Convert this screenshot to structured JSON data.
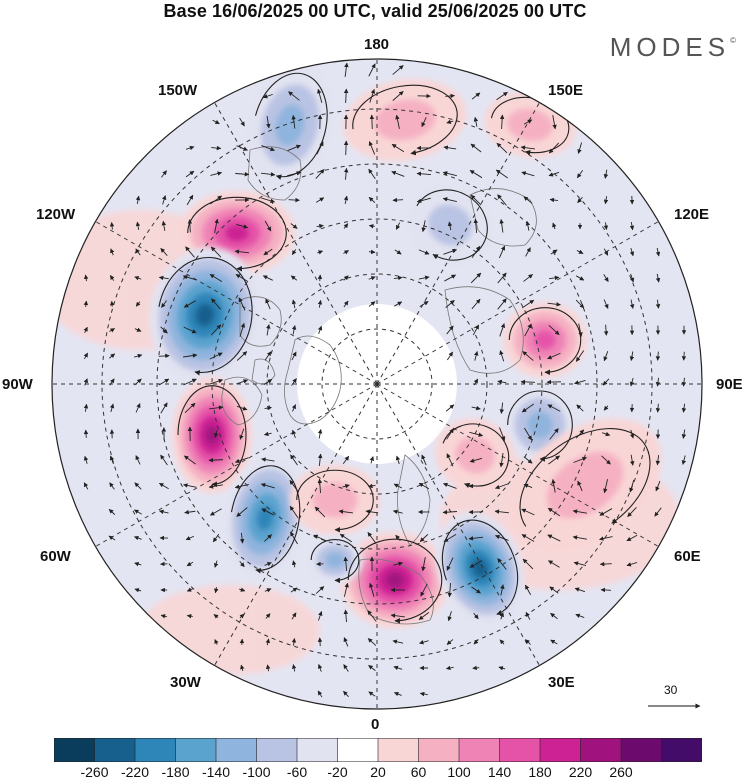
{
  "title": "Base 16/06/2025 00 UTC, valid 25/06/2025 00 UTC",
  "brand": "MODES",
  "brand_mark": "©",
  "longitude_labels": {
    "lon_180": "180",
    "lon_150w": "150W",
    "lon_150e": "150E",
    "lon_120w": "120W",
    "lon_120e": "120E",
    "lon_90w": "90W",
    "lon_90e": "90E",
    "lon_60w": "60W",
    "lon_60e": "60E",
    "lon_30w": "30W",
    "lon_30e": "30E",
    "lon_0": "0"
  },
  "wind_reference": {
    "label": "30",
    "icon": "arrow-right-icon"
  },
  "colorbar": {
    "colors": [
      "#0a3d5c",
      "#175f8d",
      "#2d85b8",
      "#5ba3cf",
      "#8fb4dd",
      "#b9c3e3",
      "#e2e3f1",
      "#ffffff",
      "#f9d6d6",
      "#f5b1c2",
      "#ef83b6",
      "#e553a8",
      "#cc2293",
      "#a0137f",
      "#6d0a6e",
      "#430c68"
    ],
    "labels": [
      "-260",
      "-220",
      "-180",
      "-140",
      "-100",
      "-60",
      "-20",
      "20",
      "60",
      "100",
      "140",
      "180",
      "220",
      "260"
    ]
  },
  "anomaly_centers": [
    {
      "name": "ridge-bering",
      "sign": "positive",
      "level": 60
    },
    {
      "name": "trough-alaska-gulf",
      "sign": "negative",
      "level": -100
    },
    {
      "name": "ridge-north-pacific",
      "sign": "positive",
      "level": 160
    },
    {
      "name": "ridge-east-siberia",
      "sign": "positive",
      "level": 60
    },
    {
      "name": "trough-east-siberia",
      "sign": "negative",
      "level": -60
    },
    {
      "name": "trough-western-canada",
      "sign": "negative",
      "level": -210
    },
    {
      "name": "ridge-hudson-bay",
      "sign": "positive",
      "level": 230
    },
    {
      "name": "trough-western-atlantic",
      "sign": "negative",
      "level": -190
    },
    {
      "name": "ridge-central-siberia",
      "sign": "positive",
      "level": 150
    },
    {
      "name": "trough-west-siberia",
      "sign": "negative",
      "level": -100
    },
    {
      "name": "ridge-kara-sea",
      "sign": "positive",
      "level": 70
    },
    {
      "name": "ridge-western-europe",
      "sign": "positive",
      "level": 210
    },
    {
      "name": "trough-scandinavia",
      "sign": "negative",
      "level": -200
    },
    {
      "name": "ridge-greenland-south",
      "sign": "positive",
      "level": 60
    },
    {
      "name": "trough-north-atlantic",
      "sign": "negative",
      "level": -100
    },
    {
      "name": "ridge-central-asia",
      "sign": "positive",
      "level": 60
    }
  ]
}
